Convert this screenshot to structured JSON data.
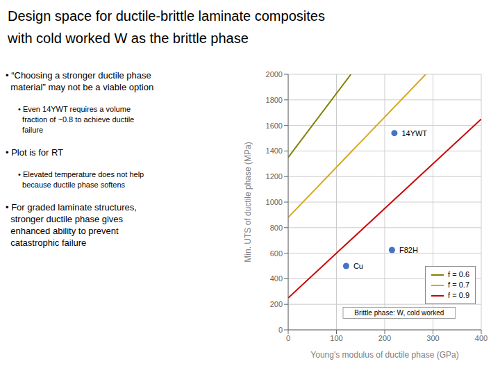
{
  "chart_data": {
    "type": "line",
    "title": "Design space for ductile-brittle laminate composites",
    "subtitle": "with cold worked W as the brittle phase",
    "x_label": "Young's modulus of ductile phase (GPa)",
    "y_label": "Min. UTS of ductile phase (MPa)",
    "xlim": [
      0,
      400
    ],
    "ylim": [
      0,
      2000
    ],
    "xticks": [
      0,
      100,
      200,
      300,
      400
    ],
    "yticks": [
      0,
      200,
      400,
      600,
      800,
      1000,
      1200,
      1400,
      1600,
      1800,
      2000
    ],
    "grid": true,
    "legend": "lower right",
    "series": [
      {
        "name": "f = 0.6",
        "color": "#808000",
        "x": [
          0,
          130
        ],
        "values": [
          1350,
          2000
        ]
      },
      {
        "name": "f = 0.7",
        "color": "#DAA520",
        "x": [
          0,
          285
        ],
        "values": [
          880,
          2000
        ]
      },
      {
        "name": "f = 0.9",
        "color": "#CC0000",
        "x": [
          0,
          400
        ],
        "values": [
          250,
          1650
        ]
      }
    ],
    "points": {
      "type": "scatter",
      "x": [
        120,
        215,
        220
      ],
      "values": [
        500,
        625,
        1540
      ],
      "labels": [
        "Cu",
        "F82H",
        "14YWT"
      ],
      "color": "#4472C4"
    },
    "annotations": [
      {
        "text": "Brittle phase: W, cold worked",
        "x": 230,
        "y": 90
      },
      {
        "text": "• “Choosing a stronger ductile phase\n  material” may not be a viable option"
      },
      {
        "text": "• Even 14YWT requires a volume\n  fraction of ~0.8 to achieve ductile\n  failure"
      },
      {
        "text": "• Plot is for RT"
      },
      {
        "text": "• Elevated temperature does not help\n  because ductile phase softens"
      },
      {
        "text": "• For graded laminate structures,\n  stronger ductile phase gives\n  enhanced ability to prevent\n  catastrophic failure"
      }
    ]
  }
}
